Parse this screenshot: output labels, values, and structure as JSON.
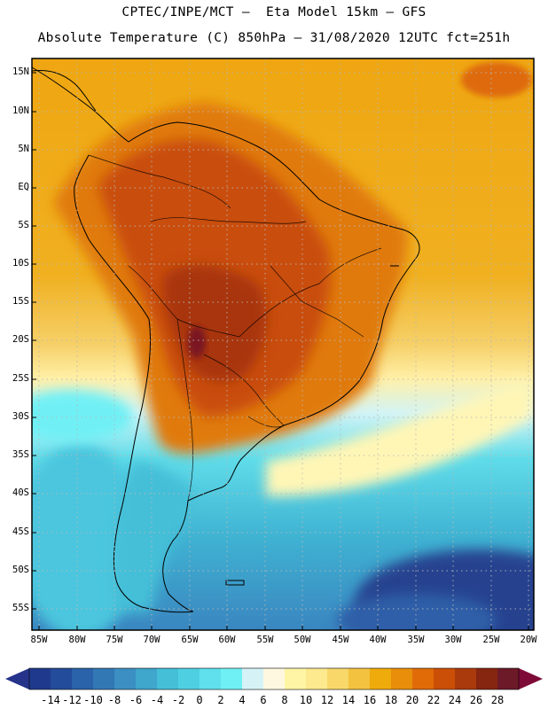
{
  "header": {
    "line1": "CPTEC/INPE/MCT –  Eta Model 15km – GFS",
    "line2": "Absolute Temperature (C) 850hPa – 31/08/2020 12UTC fct=251h"
  },
  "axes": {
    "lat_labels": [
      "15N",
      "10N",
      "5N",
      "EQ",
      "5S",
      "10S",
      "15S",
      "20S",
      "25S",
      "30S",
      "35S",
      "40S",
      "45S",
      "50S",
      "55S"
    ],
    "lon_labels": [
      "85W",
      "80W",
      "75W",
      "70W",
      "65W",
      "60W",
      "55W",
      "50W",
      "45W",
      "40W",
      "35W",
      "30W",
      "25W",
      "20W"
    ]
  },
  "colorbar": {
    "labels": [
      "-14",
      "-12",
      "-10",
      "-8",
      "-6",
      "-4",
      "-2",
      "0",
      "2",
      "4",
      "6",
      "8",
      "10",
      "12",
      "14",
      "16",
      "18",
      "20",
      "22",
      "24",
      "26",
      "28"
    ],
    "colors": [
      "#1f3a8c",
      "#234c9a",
      "#2a63aa",
      "#3178b5",
      "#3b8fc2",
      "#3fa6cc",
      "#45bfd8",
      "#4fd0e2",
      "#5fe0ec",
      "#6ff0f5",
      "#d5f3f7",
      "#fff8e1",
      "#fff5a4",
      "#fde98e",
      "#f9d86a",
      "#f3c23f",
      "#efaa0b",
      "#e88e0a",
      "#e06b07",
      "#cb4f06",
      "#aa3a0c",
      "#862510",
      "#6d1a28"
    ],
    "under_color": "#26338a",
    "over_color": "#7e0b37"
  },
  "map": {
    "region": "South America",
    "variable": "Temperature 850hPa",
    "warm_core_color": "#7a1224"
  }
}
